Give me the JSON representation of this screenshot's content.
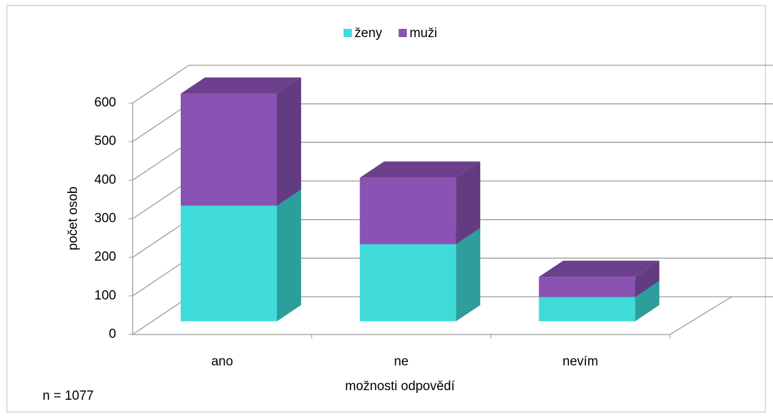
{
  "chart_data": {
    "type": "bar3d_stacked",
    "categories": [
      "ano",
      "ne",
      "nevím"
    ],
    "series": [
      {
        "name": "ženy",
        "color": "#3fdbd8",
        "values": [
          300,
          200,
          63
        ]
      },
      {
        "name": "muži",
        "color": "#8a52b3",
        "values": [
          290,
          172,
          52
        ]
      }
    ],
    "xlabel": "možnosti odpovědí",
    "ylabel": "počet osob",
    "annotation": "n = 1077",
    "ylim": [
      0,
      600
    ],
    "yticks": [
      0,
      100,
      200,
      300,
      400,
      500,
      600
    ],
    "grid": true,
    "legend": "top"
  }
}
